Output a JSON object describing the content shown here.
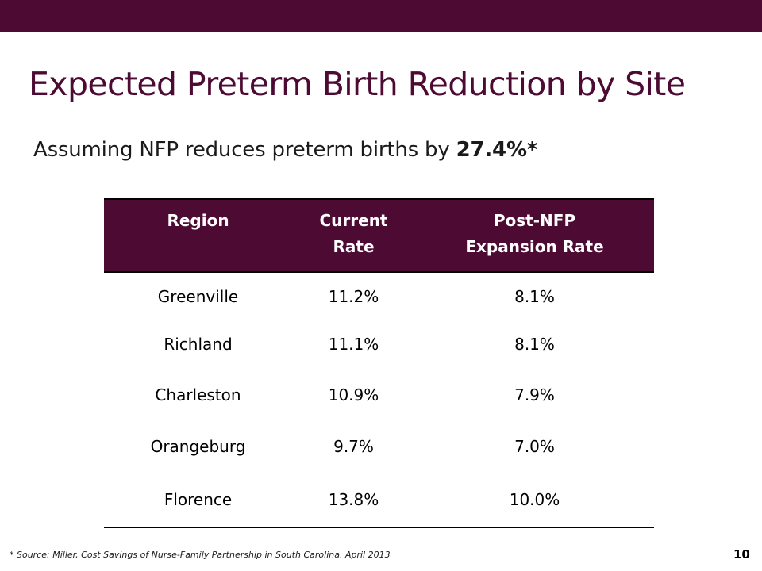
{
  "slide": {
    "title": "Expected Preterm Birth Reduction by Site",
    "subtitle_lead": "Assuming NFP reduces preterm births by ",
    "subtitle_emphasis": "27.4%*",
    "footnote": "* Source: Miller, Cost Savings of Nurse-Family Partnership in South Carolina, April 2013",
    "page_number": "10",
    "brand_color": "#4d0a32"
  },
  "table": {
    "headers": {
      "region": "Region",
      "current_line1": "Current",
      "current_line2": "Rate",
      "post_line1": "Post-NFP",
      "post_line2": "Expansion Rate"
    },
    "rows": [
      {
        "region": "Greenville",
        "current": "11.2%",
        "post": "8.1%"
      },
      {
        "region": "Richland",
        "current": "11.1%",
        "post": "8.1%"
      },
      {
        "region": "Charleston",
        "current": "10.9%",
        "post": "7.9%"
      },
      {
        "region": "Orangeburg",
        "current": "9.7%",
        "post": "7.0%"
      },
      {
        "region": "Florence",
        "current": "13.8%",
        "post": "10.0%"
      }
    ]
  }
}
